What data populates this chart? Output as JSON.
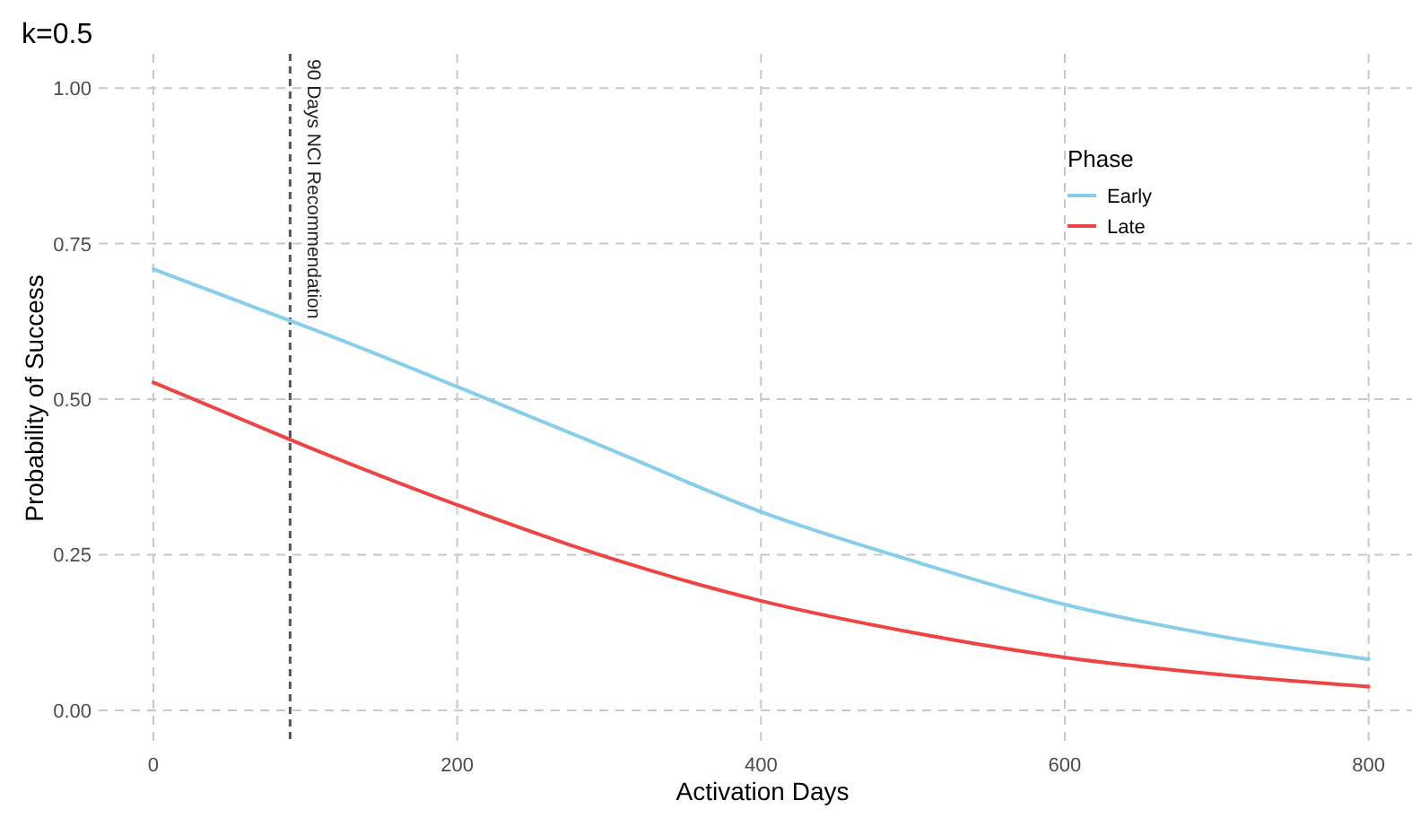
{
  "chart_data": {
    "type": "line",
    "title": "k=0.5",
    "xlabel": "Activation Days",
    "ylabel": "Probability of Success",
    "legend_title": "Phase",
    "legend": "top right",
    "grid": true,
    "line_style": "solid",
    "marker": "none",
    "x": [
      0,
      90,
      100,
      200,
      300,
      400,
      500,
      600,
      700,
      800
    ],
    "series": [
      {
        "name": "Early",
        "color": "#87ceeb",
        "values": [
          0.709,
          0.626,
          0.617,
          0.52,
          0.42,
          0.319,
          0.24,
          0.17,
          0.12,
          0.082
        ]
      },
      {
        "name": "Late",
        "color": "#ef4444",
        "values": [
          0.527,
          0.435,
          0.425,
          0.33,
          0.245,
          0.176,
          0.125,
          0.085,
          0.058,
          0.038
        ]
      }
    ],
    "xlim": [
      -36,
      838
    ],
    "xticks": [
      0,
      200,
      400,
      600,
      800
    ],
    "ylim": [
      -0.052,
      1.055
    ],
    "yticks": [
      {
        "value": 0,
        "label": "0.00"
      },
      {
        "value": 0.25,
        "label": "0.25"
      },
      {
        "value": 0.5,
        "label": "0.50"
      },
      {
        "value": 0.75,
        "label": "0.75"
      },
      {
        "value": 1,
        "label": "1.00"
      }
    ],
    "ref_lines": [
      {
        "axis": "x",
        "value": 90,
        "label": "90 Days NCI Recommendation",
        "color": "#555555",
        "line_style": "dashed"
      }
    ]
  }
}
